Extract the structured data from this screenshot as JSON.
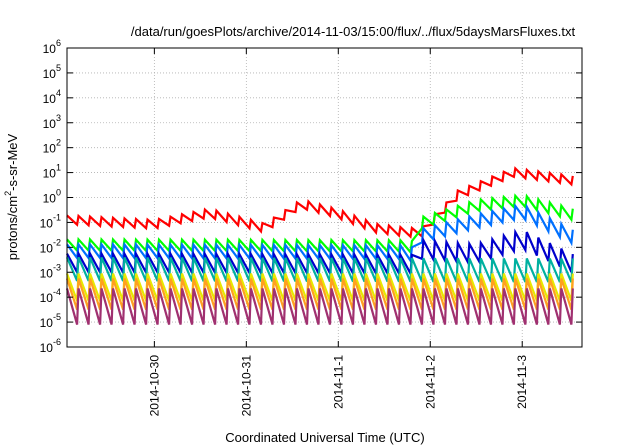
{
  "chart_data": {
    "type": "line",
    "title": "/data/run/goesPlots/archive/2014-11-03/15:00/flux/../flux/5daysMarsFluxes.txt",
    "xlabel": "Coordinated Universal Time (UTC)",
    "ylabel": "protons/cm²-s-sr-MeV",
    "ylabel_parts": {
      "main": "protons/cm",
      "sup": "2",
      "rest": "-s-sr-MeV"
    },
    "y_scale": "log",
    "ylim_exp": [
      -6,
      6
    ],
    "y_ticks": [
      {
        "base": "10",
        "exp": "-6"
      },
      {
        "base": "10",
        "exp": "-5"
      },
      {
        "base": "10",
        "exp": "-4"
      },
      {
        "base": "10",
        "exp": "-3"
      },
      {
        "base": "10",
        "exp": "-2"
      },
      {
        "base": "10",
        "exp": "-1"
      },
      {
        "base": "10",
        "exp": "0"
      },
      {
        "base": "10",
        "exp": "1"
      },
      {
        "base": "10",
        "exp": "2"
      },
      {
        "base": "10",
        "exp": "3"
      },
      {
        "base": "10",
        "exp": "4"
      },
      {
        "base": "10",
        "exp": "5"
      },
      {
        "base": "10",
        "exp": "6"
      }
    ],
    "x_ticks": [
      "2014-10-30",
      "2014-10-31",
      "2014-11-1",
      "2014-11-2",
      "2014-11-3"
    ],
    "x_tick_days": [
      1,
      2,
      3,
      4,
      5
    ],
    "xlim_days": [
      0.05,
      5.65
    ],
    "grid": true,
    "legend": "none",
    "series": [
      {
        "color": "#ff0000",
        "envelope": [
          [
            0.05,
            -0.72
          ],
          [
            1.0,
            -0.9
          ],
          [
            1.6,
            -0.45
          ],
          [
            2.2,
            -1.05
          ],
          [
            2.6,
            -0.08
          ],
          [
            3.0,
            -0.48
          ],
          [
            3.4,
            -1.05
          ],
          [
            3.7,
            -1.2
          ],
          [
            3.9,
            -1.25
          ],
          [
            4.3,
            0.28
          ],
          [
            4.9,
            1.18
          ],
          [
            5.65,
            0.82
          ]
        ],
        "sawtooth": 0.35
      },
      {
        "color": "#00ff00",
        "envelope": [
          [
            0.05,
            -1.68
          ],
          [
            3.7,
            -1.72
          ],
          [
            3.8,
            -1.75
          ],
          [
            3.88,
            -0.82
          ],
          [
            4.5,
            -0.1
          ],
          [
            5.0,
            0.1
          ],
          [
            5.65,
            -0.55
          ]
        ],
        "sawtooth": 0.45,
        "step_at": 3.85
      },
      {
        "color": "#0070ff",
        "envelope": [
          [
            0.05,
            -1.88
          ],
          [
            3.7,
            -1.92
          ],
          [
            3.8,
            -2.0
          ],
          [
            3.88,
            -1.28
          ],
          [
            4.5,
            -0.68
          ],
          [
            5.0,
            -0.28
          ],
          [
            5.65,
            -1.48
          ]
        ],
        "sawtooth": 0.55,
        "step_at": 3.85
      },
      {
        "color": "#0000cc",
        "envelope": [
          [
            0.05,
            -2.25
          ],
          [
            3.8,
            -2.3
          ],
          [
            3.88,
            -1.7
          ],
          [
            4.5,
            -1.88
          ],
          [
            5.0,
            -1.3
          ],
          [
            5.65,
            -2.45
          ]
        ],
        "sawtooth": 0.75
      },
      {
        "color": "#00b0a0",
        "envelope": [
          [
            0.05,
            -2.4
          ],
          [
            5.65,
            -2.45
          ]
        ],
        "sawtooth": 0.95
      },
      {
        "color": "#e8e800",
        "envelope": [
          [
            0.05,
            -3.05
          ],
          [
            5.65,
            -3.05
          ]
        ],
        "sawtooth": 1.1
      },
      {
        "color": "#ffa020",
        "envelope": [
          [
            0.05,
            -3.25
          ],
          [
            5.65,
            -3.25
          ]
        ],
        "sawtooth": 1.25
      },
      {
        "color": "#a03070",
        "envelope": [
          [
            0.05,
            -3.65
          ],
          [
            5.65,
            -3.65
          ]
        ],
        "sawtooth": 1.45
      }
    ],
    "oscillation_period_days": 0.125
  }
}
